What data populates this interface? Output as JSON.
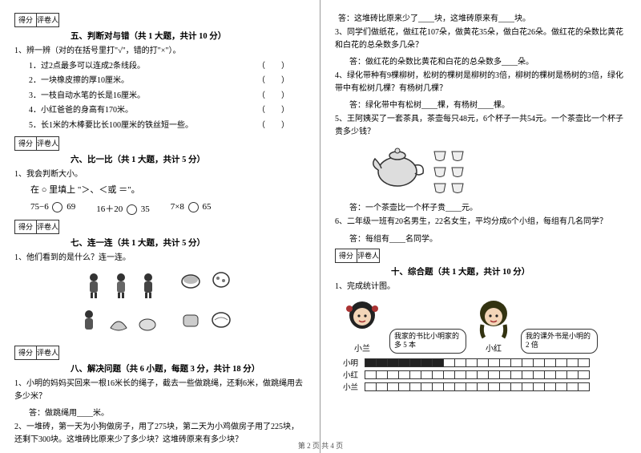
{
  "scoreLabels": {
    "score": "得分",
    "grader": "评卷人"
  },
  "sections": {
    "s5": {
      "title": "五、判断对与错（共 1 大题，共计 10 分）",
      "lead": "1、辨一辨（对的在括号里打\"√\"，错的打\"×\"）。",
      "items": [
        "1．过2点最多可以连成2条线段。",
        "2．一块橡皮擦的厚10厘米。",
        "3．一枝自动水笔的长是16厘米。",
        "4．小红爸爸的身高有170米。",
        "5．长1米的木棒要比长100厘米的铁丝短一些。"
      ]
    },
    "s6": {
      "title": "六、比一比（共 1 大题，共计 5 分）",
      "lead": "1、我会判断大小。",
      "instr": "在 ○ 里填上 \"＞、＜或 ＝\"。",
      "row": [
        "75−6",
        "69",
        "16＋20",
        "35",
        "7×8",
        "65"
      ]
    },
    "s7": {
      "title": "七、连一连（共 1 大题，共计 5 分）",
      "lead": "1、他们看到的是什么？连一连。"
    },
    "s8": {
      "title": "八、解决问题（共 6 小题，每题 3 分，共计 18 分）",
      "q1": "1、小明的妈妈买回来一根16米长的绳子，截去一些做跳绳，还剩6米，做跳绳用去多少米？",
      "a1": "答：做跳绳用____米。",
      "q2": "2、一堆砖，第一天为小狗做房子，用了275块，第二天为小鸡做房子用了225块，还剩下300块。这堆砖比原来少了多少块？这堆砖原来有多少块？"
    },
    "right": {
      "a2": "答：这堆砖比原来少了____块，这堆砖原来有____块。",
      "q3": "3、同学们做纸花，做红花107朵，做黄花35朵，做白花26朵。做红花的朵数比黄花和白花的总朵数多几朵？",
      "a3": "答：做红花的朵数比黄花和白花的总朵数多____朵。",
      "q4": "4、绿化带种有9棵柳树，松树的棵树是柳树的3倍，柳树的棵树是杨树的3倍，绿化带中有松树几棵？有杨树几棵？",
      "a4": "答：绿化带中有松树____棵，有杨树____棵。",
      "q5": "5、王阿姨买了一套茶具，茶壶每只48元，6个杯子一共54元。一个茶壶比一个杯子贵多少钱？",
      "a5": "答：一个茶壶比一个杯子贵____元。",
      "q6": "6、二年级一班有20名男生，22名女生，平均分成6个小组，每组有几名同学？",
      "a6": "答：每组有____名同学。"
    },
    "s10": {
      "title": "十、综合题（共 1 大题，共计 10 分）",
      "lead": "1、完成统计图。",
      "bubble1": "我家的书比小明家的多 5 本",
      "name1": "小兰",
      "bubble2": "我的课外书是小明的 2 倍",
      "name2": "小红",
      "rows": [
        "小明",
        "小红",
        "小兰"
      ],
      "filled": [
        7,
        0,
        0
      ],
      "cols": 20
    }
  },
  "footer": "第 2 页 共 4 页"
}
